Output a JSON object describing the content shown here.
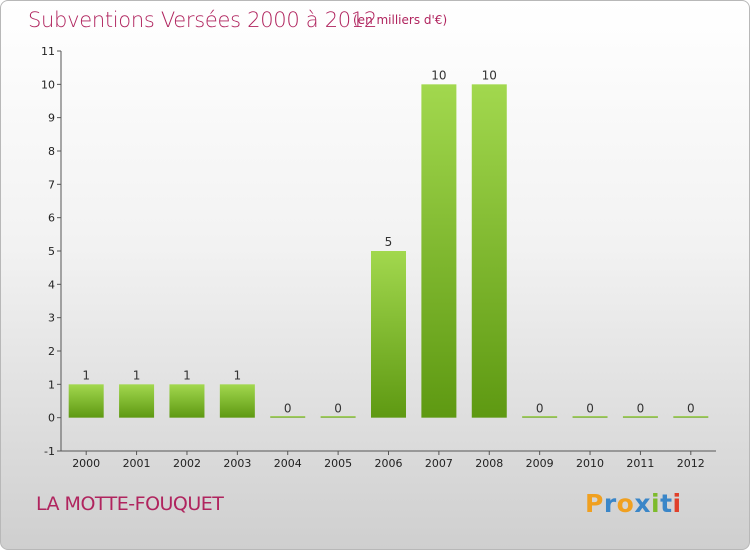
{
  "title": "Subventions Versées 2000 à 2012",
  "unit_note": "(en milliers d'€)",
  "place": "LA MOTTE-FOUQUET",
  "logo": {
    "letters": [
      "P",
      "r",
      "o",
      "x",
      "i",
      "t",
      "i"
    ],
    "colors": [
      "#f0a020",
      "#3a86c8",
      "#f0a020",
      "#3a86c8",
      "#7dbb2c",
      "#3a86c8",
      "#e0402a"
    ]
  },
  "colors": {
    "bar_light": "#9fd24a",
    "bar_dark": "#5f9a12",
    "title": "#b0245e"
  },
  "chart_data": {
    "type": "bar",
    "title": "Subventions Versées 2000 à 2012",
    "categories": [
      "2000",
      "2001",
      "2002",
      "2003",
      "2004",
      "2005",
      "2006",
      "2007",
      "2008",
      "2009",
      "2010",
      "2011",
      "2012"
    ],
    "values": [
      1,
      1,
      1,
      1,
      0,
      0,
      5,
      10,
      10,
      0,
      0,
      0,
      0
    ],
    "ylim": [
      -1,
      11
    ],
    "yticks": [
      -1,
      0,
      1,
      2,
      3,
      4,
      5,
      6,
      7,
      8,
      9,
      10,
      11
    ],
    "grid": false
  }
}
